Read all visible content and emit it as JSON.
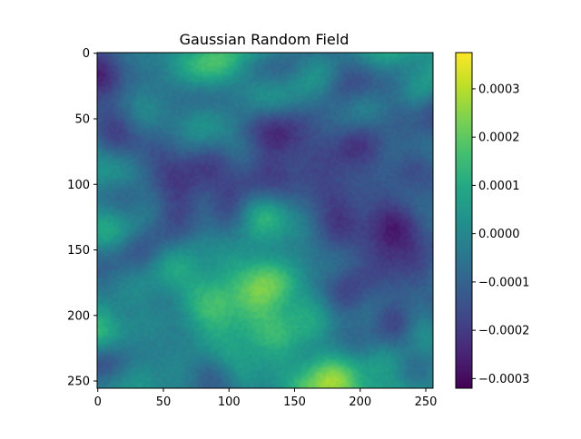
{
  "chart_data": {
    "type": "heatmap",
    "title": "Gaussian Random Field",
    "xlabel": "",
    "ylabel": "",
    "grid": false,
    "xlim": [
      0,
      255
    ],
    "ylim": [
      255,
      0
    ],
    "x_ticks": [
      0,
      50,
      100,
      150,
      200,
      250
    ],
    "y_ticks": [
      0,
      50,
      100,
      150,
      200,
      250
    ],
    "x_tick_labels": [
      "0",
      "50",
      "100",
      "150",
      "200",
      "250"
    ],
    "y_tick_labels": [
      "0",
      "50",
      "100",
      "150",
      "200",
      "250"
    ],
    "colormap": "viridis",
    "colorbar": {
      "range": [
        -0.00032,
        0.000375
      ],
      "ticks": [
        -0.0003,
        -0.0002,
        -0.0001,
        0.0,
        0.0001,
        0.0002,
        0.0003
      ],
      "tick_labels": [
        "−0.0003",
        "−0.0002",
        "−0.0001",
        "0.0000",
        "0.0001",
        "0.0002",
        "0.0003"
      ],
      "placement": "right"
    },
    "colors": {
      "viridis_low": "#440154",
      "viridis_mid": "#21918c",
      "viridis_high": "#fde725"
    }
  }
}
